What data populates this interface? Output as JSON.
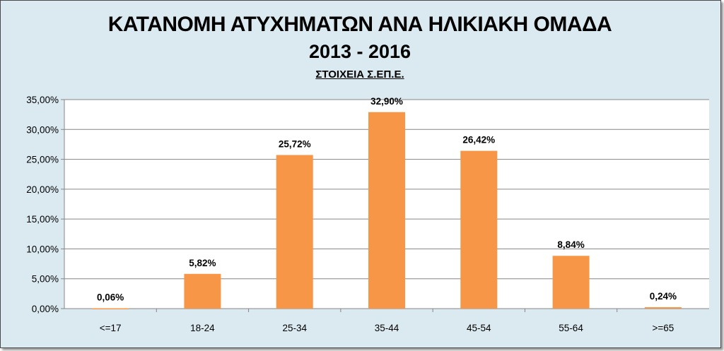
{
  "chart_data": {
    "type": "bar",
    "title": "ΚΑΤΑΝΟΜΗ ΑΤΥΧΗΜΑΤΩΝ ΑΝΑ ΗΛΙΚΙΑΚΗ ΟΜΑΔΑ",
    "title_line2": "2013 - 2016",
    "subtitle": "ΣΤΟΙΧΕΙΑ Σ.ΕΠ.Ε.",
    "xlabel": "",
    "ylabel": "",
    "categories": [
      "<=17",
      "18-24",
      "25-34",
      "35-44",
      "45-54",
      "55-64",
      ">=65"
    ],
    "values": [
      0.06,
      5.82,
      25.72,
      32.9,
      26.42,
      8.84,
      0.24
    ],
    "value_labels": [
      "0,06%",
      "5,82%",
      "25,72%",
      "32,90%",
      "26,42%",
      "8,84%",
      "0,24%"
    ],
    "ylim": [
      0,
      35
    ],
    "yticks": [
      0,
      5,
      10,
      15,
      20,
      25,
      30,
      35
    ],
    "ytick_labels": [
      "0,00%",
      "5,00%",
      "10,00%",
      "15,00%",
      "20,00%",
      "25,00%",
      "30,00%",
      "35,00%"
    ],
    "grid": true,
    "legend": "none",
    "colors": {
      "bar": "#f79646",
      "background": "#dbe9f1",
      "plot_area": "#ffffff",
      "gridline": "#868686"
    }
  }
}
